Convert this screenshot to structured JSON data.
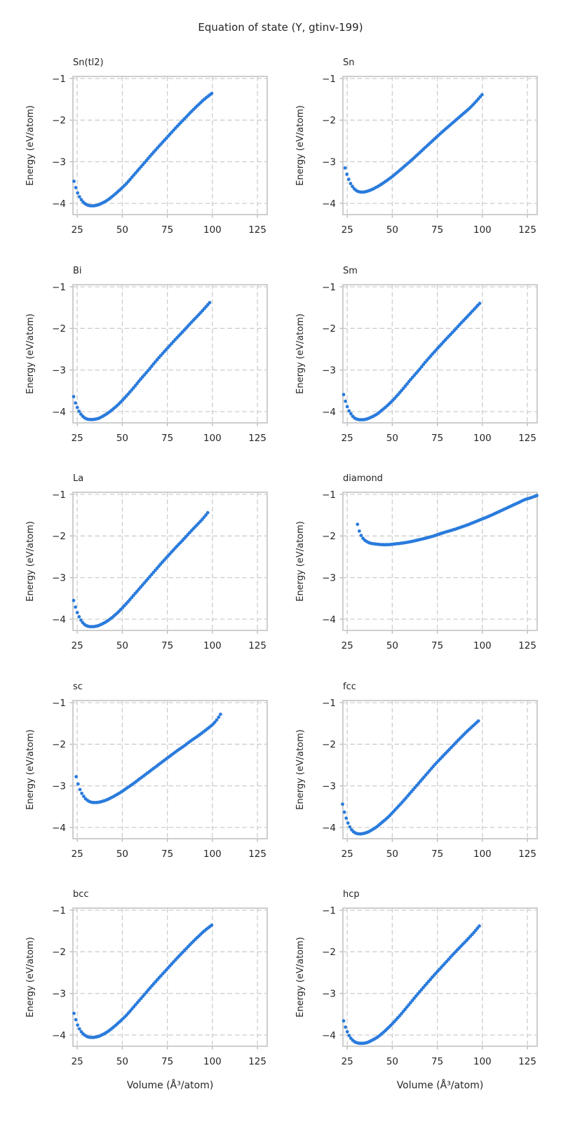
{
  "title": "Equation of state (Y, gtinv-199)",
  "colors": {
    "marker": "#2a7bdc",
    "grid": "#cdcdcd",
    "spine": "#c9c9c9",
    "tick": "#b5b5b5",
    "text": "#262626",
    "background": "#ffffff"
  },
  "axis": {
    "xlabel": "Volume (Å³/atom)",
    "ylabel": "Energy (eV/atom)",
    "xlim": [
      22.6,
      130.4
    ],
    "ylim": [
      -4.27,
      -0.95
    ],
    "x_ticks": [
      25,
      50,
      75,
      100,
      125
    ],
    "x_tick_labels": [
      "25",
      "50",
      "75",
      "100",
      "125"
    ],
    "y_ticks": [
      -1,
      -2,
      -3,
      -4
    ],
    "y_tick_labels": [
      "−1",
      "−2",
      "−3",
      "−4"
    ],
    "grid_style": "dashed",
    "legend": "none"
  },
  "chart_data": [
    {
      "type": "scatter",
      "title": "Sn(tl2)",
      "n_points": 77,
      "anchors": [
        [
          23.2,
          -3.47
        ],
        [
          24.2,
          -3.62
        ],
        [
          25.2,
          -3.75
        ],
        [
          26.2,
          -3.84
        ],
        [
          27.2,
          -3.91
        ],
        [
          28.2,
          -3.965
        ],
        [
          29.2,
          -4.005
        ],
        [
          30.2,
          -4.03
        ],
        [
          31.2,
          -4.048
        ],
        [
          32.2,
          -4.057
        ],
        [
          33.6,
          -4.06
        ],
        [
          35.2,
          -4.052
        ],
        [
          37,
          -4.03
        ],
        [
          39,
          -3.99
        ],
        [
          41.5,
          -3.93
        ],
        [
          44,
          -3.85
        ],
        [
          47,
          -3.74
        ],
        [
          50,
          -3.62
        ],
        [
          53,
          -3.49
        ],
        [
          56,
          -3.34
        ],
        [
          60,
          -3.14
        ],
        [
          64,
          -2.94
        ],
        [
          68,
          -2.74
        ],
        [
          72,
          -2.55
        ],
        [
          76,
          -2.36
        ],
        [
          80,
          -2.17
        ],
        [
          84,
          -1.99
        ],
        [
          88,
          -1.81
        ],
        [
          92,
          -1.64
        ],
        [
          95.5,
          -1.5
        ],
        [
          97.8,
          -1.42
        ],
        [
          99.6,
          -1.36
        ]
      ]
    },
    {
      "type": "scatter",
      "title": "Sn",
      "n_points": 76,
      "anchors": [
        [
          23.8,
          -3.15
        ],
        [
          24.8,
          -3.3
        ],
        [
          25.8,
          -3.42
        ],
        [
          26.8,
          -3.52
        ],
        [
          27.8,
          -3.59
        ],
        [
          28.8,
          -3.645
        ],
        [
          29.8,
          -3.685
        ],
        [
          30.8,
          -3.71
        ],
        [
          31.8,
          -3.723
        ],
        [
          33,
          -3.73
        ],
        [
          34.5,
          -3.726
        ],
        [
          36,
          -3.71
        ],
        [
          38,
          -3.68
        ],
        [
          40,
          -3.64
        ],
        [
          42.5,
          -3.58
        ],
        [
          45,
          -3.51
        ],
        [
          48,
          -3.42
        ],
        [
          51,
          -3.32
        ],
        [
          54,
          -3.21
        ],
        [
          57,
          -3.1
        ],
        [
          61,
          -2.95
        ],
        [
          65,
          -2.79
        ],
        [
          69,
          -2.63
        ],
        [
          73,
          -2.47
        ],
        [
          77,
          -2.31
        ],
        [
          81,
          -2.16
        ],
        [
          85,
          -2.01
        ],
        [
          89,
          -1.86
        ],
        [
          93,
          -1.71
        ],
        [
          96.5,
          -1.55
        ],
        [
          99.8,
          -1.39
        ]
      ]
    },
    {
      "type": "scatter",
      "title": "Bi",
      "n_points": 76,
      "anchors": [
        [
          23,
          -3.64
        ],
        [
          24,
          -3.79
        ],
        [
          25,
          -3.9
        ],
        [
          26,
          -3.99
        ],
        [
          27,
          -4.06
        ],
        [
          28,
          -4.11
        ],
        [
          29,
          -4.148
        ],
        [
          30,
          -4.172
        ],
        [
          31,
          -4.185
        ],
        [
          32.2,
          -4.19
        ],
        [
          33.6,
          -4.19
        ],
        [
          35.2,
          -4.18
        ],
        [
          37,
          -4.16
        ],
        [
          39,
          -4.115
        ],
        [
          41.5,
          -4.05
        ],
        [
          44,
          -3.97
        ],
        [
          47,
          -3.86
        ],
        [
          50,
          -3.73
        ],
        [
          53,
          -3.59
        ],
        [
          56,
          -3.44
        ],
        [
          60,
          -3.23
        ],
        [
          64,
          -3.03
        ],
        [
          68,
          -2.82
        ],
        [
          72,
          -2.62
        ],
        [
          76,
          -2.43
        ],
        [
          80,
          -2.24
        ],
        [
          84,
          -2.06
        ],
        [
          88,
          -1.87
        ],
        [
          92,
          -1.69
        ],
        [
          95,
          -1.55
        ],
        [
          98.5,
          -1.38
        ]
      ]
    },
    {
      "type": "scatter",
      "title": "Sm",
      "n_points": 76,
      "anchors": [
        [
          23,
          -3.59
        ],
        [
          24,
          -3.75
        ],
        [
          25,
          -3.88
        ],
        [
          26,
          -3.98
        ],
        [
          27,
          -4.05
        ],
        [
          28,
          -4.11
        ],
        [
          29,
          -4.15
        ],
        [
          30,
          -4.175
        ],
        [
          31,
          -4.188
        ],
        [
          32.2,
          -4.195
        ],
        [
          33.6,
          -4.195
        ],
        [
          35.2,
          -4.185
        ],
        [
          37,
          -4.16
        ],
        [
          39,
          -4.12
        ],
        [
          41.5,
          -4.06
        ],
        [
          44,
          -3.975
        ],
        [
          47,
          -3.865
        ],
        [
          50,
          -3.74
        ],
        [
          53,
          -3.6
        ],
        [
          56,
          -3.45
        ],
        [
          60,
          -3.24
        ],
        [
          64,
          -3.04
        ],
        [
          68,
          -2.83
        ],
        [
          72,
          -2.63
        ],
        [
          76,
          -2.44
        ],
        [
          80,
          -2.25
        ],
        [
          84,
          -2.07
        ],
        [
          88,
          -1.88
        ],
        [
          92,
          -1.7
        ],
        [
          95,
          -1.56
        ],
        [
          98.5,
          -1.4
        ]
      ]
    },
    {
      "type": "scatter",
      "title": "La",
      "n_points": 75,
      "anchors": [
        [
          23,
          -3.55
        ],
        [
          24,
          -3.71
        ],
        [
          25,
          -3.84
        ],
        [
          26,
          -3.94
        ],
        [
          27,
          -4.02
        ],
        [
          28,
          -4.08
        ],
        [
          29,
          -4.125
        ],
        [
          30,
          -4.155
        ],
        [
          31,
          -4.17
        ],
        [
          32.2,
          -4.18
        ],
        [
          33.6,
          -4.18
        ],
        [
          35.2,
          -4.172
        ],
        [
          37,
          -4.15
        ],
        [
          39,
          -4.11
        ],
        [
          41.5,
          -4.05
        ],
        [
          44,
          -3.97
        ],
        [
          47,
          -3.86
        ],
        [
          50,
          -3.73
        ],
        [
          53,
          -3.59
        ],
        [
          56,
          -3.44
        ],
        [
          60,
          -3.24
        ],
        [
          64,
          -3.04
        ],
        [
          68,
          -2.84
        ],
        [
          72,
          -2.64
        ],
        [
          76,
          -2.45
        ],
        [
          80,
          -2.26
        ],
        [
          84,
          -2.08
        ],
        [
          88,
          -1.89
        ],
        [
          92,
          -1.71
        ],
        [
          95,
          -1.57
        ],
        [
          97.4,
          -1.44
        ]
      ]
    },
    {
      "type": "scatter",
      "title": "diamond",
      "n_points": 100,
      "anchors": [
        [
          30.7,
          -1.72
        ],
        [
          31.4,
          -1.84
        ],
        [
          32.2,
          -1.94
        ],
        [
          33,
          -2.01
        ],
        [
          34,
          -2.07
        ],
        [
          35,
          -2.11
        ],
        [
          36.5,
          -2.15
        ],
        [
          38,
          -2.175
        ],
        [
          40,
          -2.19
        ],
        [
          42,
          -2.2
        ],
        [
          44,
          -2.207
        ],
        [
          46,
          -2.21
        ],
        [
          48,
          -2.208
        ],
        [
          50,
          -2.2
        ],
        [
          52,
          -2.19
        ],
        [
          55,
          -2.175
        ],
        [
          58,
          -2.155
        ],
        [
          61,
          -2.13
        ],
        [
          64,
          -2.1
        ],
        [
          67,
          -2.07
        ],
        [
          70,
          -2.035
        ],
        [
          73,
          -2.0
        ],
        [
          76,
          -1.955
        ],
        [
          80,
          -1.9
        ],
        [
          84,
          -1.85
        ],
        [
          88,
          -1.79
        ],
        [
          92,
          -1.73
        ],
        [
          96,
          -1.66
        ],
        [
          100,
          -1.59
        ],
        [
          104,
          -1.52
        ],
        [
          108,
          -1.44
        ],
        [
          112,
          -1.36
        ],
        [
          116,
          -1.28
        ],
        [
          120,
          -1.2
        ],
        [
          124,
          -1.12
        ],
        [
          127,
          -1.08
        ],
        [
          130.2,
          -1.03
        ]
      ]
    },
    {
      "type": "scatter",
      "title": "sc",
      "n_points": 78,
      "anchors": [
        [
          24.4,
          -2.78
        ],
        [
          25.4,
          -2.95
        ],
        [
          26.4,
          -3.08
        ],
        [
          27.4,
          -3.17
        ],
        [
          28.4,
          -3.24
        ],
        [
          29.4,
          -3.3
        ],
        [
          30.4,
          -3.34
        ],
        [
          31.4,
          -3.37
        ],
        [
          32.6,
          -3.39
        ],
        [
          34,
          -3.4
        ],
        [
          35.6,
          -3.4
        ],
        [
          37.4,
          -3.39
        ],
        [
          39.5,
          -3.365
        ],
        [
          42,
          -3.325
        ],
        [
          44.5,
          -3.27
        ],
        [
          47,
          -3.21
        ],
        [
          50,
          -3.13
        ],
        [
          53,
          -3.04
        ],
        [
          56,
          -2.95
        ],
        [
          60,
          -2.82
        ],
        [
          64,
          -2.69
        ],
        [
          68,
          -2.56
        ],
        [
          72,
          -2.43
        ],
        [
          76,
          -2.3
        ],
        [
          80,
          -2.17
        ],
        [
          84,
          -2.05
        ],
        [
          88,
          -1.92
        ],
        [
          92,
          -1.8
        ],
        [
          96,
          -1.67
        ],
        [
          100,
          -1.53
        ],
        [
          102.5,
          -1.41
        ],
        [
          104.5,
          -1.28
        ]
      ]
    },
    {
      "type": "scatter",
      "title": "fcc",
      "n_points": 76,
      "anchors": [
        [
          22.4,
          -3.44
        ],
        [
          23.2,
          -3.6
        ],
        [
          24,
          -3.72
        ],
        [
          25,
          -3.85
        ],
        [
          26,
          -3.95
        ],
        [
          27,
          -4.03
        ],
        [
          28,
          -4.085
        ],
        [
          29,
          -4.12
        ],
        [
          30,
          -4.142
        ],
        [
          31,
          -4.152
        ],
        [
          32.2,
          -4.155
        ],
        [
          33.6,
          -4.148
        ],
        [
          35.2,
          -4.13
        ],
        [
          37,
          -4.1
        ],
        [
          39,
          -4.05
        ],
        [
          41.5,
          -3.98
        ],
        [
          44,
          -3.89
        ],
        [
          47,
          -3.78
        ],
        [
          50,
          -3.65
        ],
        [
          53,
          -3.51
        ],
        [
          56,
          -3.37
        ],
        [
          60,
          -3.17
        ],
        [
          64,
          -2.97
        ],
        [
          68,
          -2.77
        ],
        [
          72,
          -2.57
        ],
        [
          76,
          -2.38
        ],
        [
          80,
          -2.2
        ],
        [
          84,
          -2.02
        ],
        [
          88,
          -1.84
        ],
        [
          92,
          -1.67
        ],
        [
          95,
          -1.55
        ],
        [
          97.8,
          -1.44
        ]
      ]
    },
    {
      "type": "scatter",
      "title": "bcc",
      "n_points": 77,
      "anchors": [
        [
          23.2,
          -3.48
        ],
        [
          24.2,
          -3.63
        ],
        [
          25.2,
          -3.76
        ],
        [
          26.2,
          -3.85
        ],
        [
          27.2,
          -3.92
        ],
        [
          28.2,
          -3.97
        ],
        [
          29.2,
          -4.005
        ],
        [
          30.2,
          -4.03
        ],
        [
          31.2,
          -4.048
        ],
        [
          32.2,
          -4.056
        ],
        [
          33.6,
          -4.058
        ],
        [
          35.2,
          -4.05
        ],
        [
          37,
          -4.03
        ],
        [
          39,
          -3.99
        ],
        [
          41.5,
          -3.93
        ],
        [
          44,
          -3.85
        ],
        [
          47,
          -3.74
        ],
        [
          50,
          -3.62
        ],
        [
          53,
          -3.49
        ],
        [
          56,
          -3.34
        ],
        [
          60,
          -3.14
        ],
        [
          64,
          -2.94
        ],
        [
          68,
          -2.74
        ],
        [
          72,
          -2.55
        ],
        [
          76,
          -2.36
        ],
        [
          80,
          -2.17
        ],
        [
          84,
          -1.99
        ],
        [
          88,
          -1.81
        ],
        [
          92,
          -1.64
        ],
        [
          95.5,
          -1.5
        ],
        [
          97.8,
          -1.42
        ],
        [
          99.6,
          -1.36
        ]
      ]
    },
    {
      "type": "scatter",
      "title": "hcp",
      "n_points": 76,
      "anchors": [
        [
          23,
          -3.66
        ],
        [
          24,
          -3.81
        ],
        [
          25,
          -3.92
        ],
        [
          26,
          -4.01
        ],
        [
          27,
          -4.075
        ],
        [
          28,
          -4.125
        ],
        [
          29,
          -4.16
        ],
        [
          30,
          -4.18
        ],
        [
          31,
          -4.193
        ],
        [
          32.2,
          -4.2
        ],
        [
          33.6,
          -4.2
        ],
        [
          35.2,
          -4.19
        ],
        [
          37,
          -4.165
        ],
        [
          39,
          -4.12
        ],
        [
          41.5,
          -4.06
        ],
        [
          44,
          -3.975
        ],
        [
          47,
          -3.86
        ],
        [
          50,
          -3.73
        ],
        [
          53,
          -3.59
        ],
        [
          56,
          -3.44
        ],
        [
          60,
          -3.23
        ],
        [
          64,
          -3.02
        ],
        [
          68,
          -2.82
        ],
        [
          72,
          -2.62
        ],
        [
          76,
          -2.43
        ],
        [
          80,
          -2.24
        ],
        [
          84,
          -2.05
        ],
        [
          88,
          -1.87
        ],
        [
          92,
          -1.69
        ],
        [
          95,
          -1.55
        ],
        [
          98.3,
          -1.38
        ]
      ]
    }
  ]
}
